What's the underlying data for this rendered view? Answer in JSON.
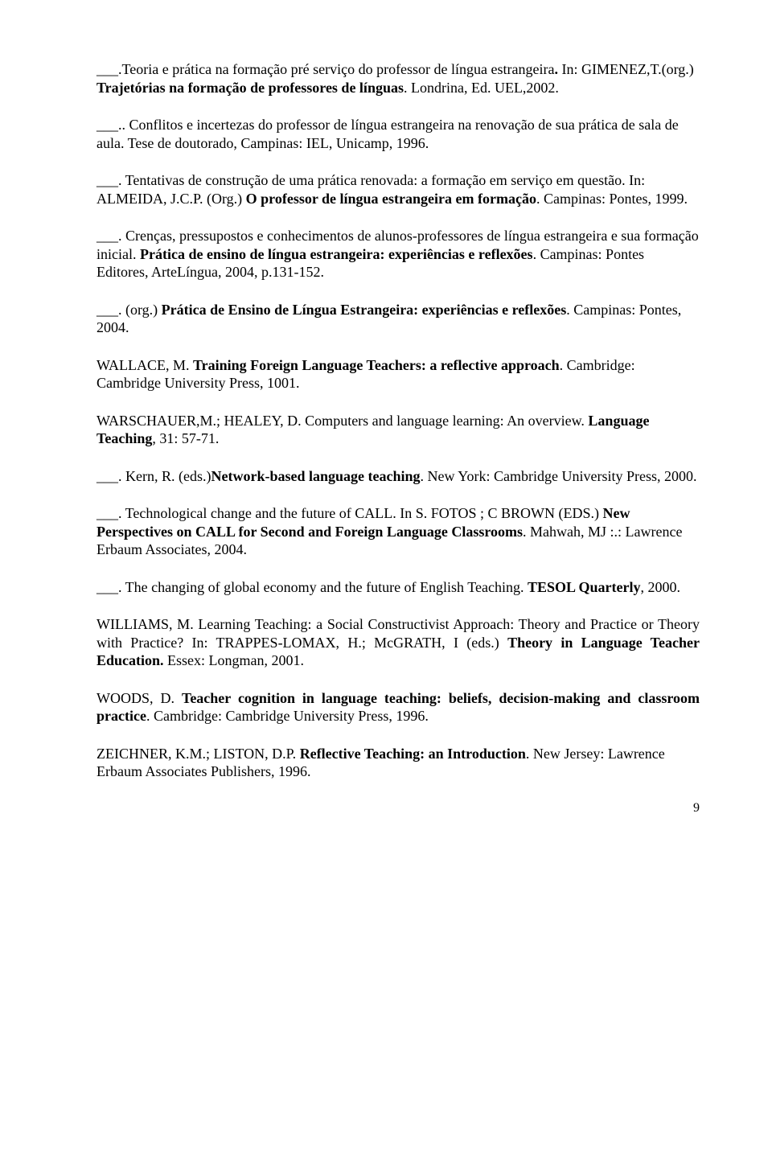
{
  "entries": [
    {
      "segments": [
        {
          "text": "___.Teoria e prática na formação pré serviço do professor de língua estrangeira",
          "bold": false
        },
        {
          "text": ". ",
          "bold": true
        },
        {
          "text": "In: GIMENEZ,T.(org.) ",
          "bold": false
        },
        {
          "text": "Trajetórias na formação de professores de línguas",
          "bold": true
        },
        {
          "text": ". Londrina, Ed. UEL,2002.",
          "bold": false
        }
      ],
      "justified": false
    },
    {
      "segments": [
        {
          "text": "___.. Conflitos e incertezas do professor de língua estrangeira na renovação de sua prática de sala de aula. Tese de doutorado, Campinas: IEL, Unicamp, 1996.",
          "bold": false
        }
      ],
      "justified": false
    },
    {
      "segments": [
        {
          "text": "___. Tentativas de construção de uma prática renovada: a formação em serviço em questão. In: ALMEIDA, J.C.P. (Org.) ",
          "bold": false
        },
        {
          "text": "O professor de língua estrangeira em formação",
          "bold": true
        },
        {
          "text": ". Campinas: Pontes, 1999.",
          "bold": false
        }
      ],
      "justified": false
    },
    {
      "segments": [
        {
          "text": "___. Crenças, pressupostos e conhecimentos de alunos-professores de língua estrangeira e sua formação inicial. ",
          "bold": false
        },
        {
          "text": "Prática de ensino de língua estrangeira: experiências e reflexões",
          "bold": true
        },
        {
          "text": ". Campinas: Pontes Editores, ArteLíngua, 2004, p.131-152.",
          "bold": false
        }
      ],
      "justified": false
    },
    {
      "segments": [
        {
          "text": "___. (org.) ",
          "bold": false
        },
        {
          "text": "Prática de Ensino de Língua Estrangeira: experiências e reflexões",
          "bold": true
        },
        {
          "text": ". Campinas: Pontes, 2004.",
          "bold": false
        }
      ],
      "justified": false
    },
    {
      "segments": [
        {
          "text": "WALLACE, M.  ",
          "bold": false
        },
        {
          "text": "Training Foreign Language Teachers: a reflective approach",
          "bold": true
        },
        {
          "text": ". Cambridge: Cambridge University Press, 1001.",
          "bold": false
        }
      ],
      "justified": false
    },
    {
      "segments": [
        {
          "text": "WARSCHAUER,M.; HEALEY, D. Computers and language learning: An overview. ",
          "bold": false
        },
        {
          "text": "Language Teaching",
          "bold": true
        },
        {
          "text": ", 31:  57-71.",
          "bold": false
        }
      ],
      "justified": false
    },
    {
      "segments": [
        {
          "text": "___. Kern, R. (eds.)",
          "bold": false
        },
        {
          "text": "Network-based language teaching",
          "bold": true
        },
        {
          "text": ". New York: Cambridge University Press, 2000.",
          "bold": false
        }
      ],
      "justified": false
    },
    {
      "segments": [
        {
          "text": "___. Technological change and the future of CALL. In  S. FOTOS ; C BROWN (EDS.) ",
          "bold": false
        },
        {
          "text": "New Perspectives on CALL for Second  and Foreign Language Classrooms",
          "bold": true
        },
        {
          "text": ". Mahwah, MJ :.: Lawrence Erbaum Associates, 2004.",
          "bold": false
        }
      ],
      "justified": false
    },
    {
      "segments": [
        {
          "text": "___. The changing of global economy and the future of  English Teaching. ",
          "bold": false
        },
        {
          "text": "TESOL Quarterly",
          "bold": true
        },
        {
          "text": ", 2000.",
          "bold": false
        }
      ],
      "justified": false
    },
    {
      "segments": [
        {
          "text": "WILLIAMS, M. Learning Teaching: a Social Constructivist Approach: Theory and Practice or Theory with Practice? In: TRAPPES-LOMAX, H.; McGRATH, I (eds.) ",
          "bold": false
        },
        {
          "text": "Theory in Language Teacher Education. ",
          "bold": true
        },
        {
          "text": "Essex: Longman, 2001.",
          "bold": false
        }
      ],
      "justified": true
    },
    {
      "segments": [
        {
          "text": "WOODS, D. ",
          "bold": false
        },
        {
          "text": "Teacher cognition in language teaching: beliefs, decision-making and classroom practice",
          "bold": true
        },
        {
          "text": ". Cambridge: Cambridge University Press, 1996.",
          "bold": false
        }
      ],
      "justified": true
    },
    {
      "segments": [
        {
          "text": "ZEICHNER, K.M.; LISTON, D.P. ",
          "bold": false
        },
        {
          "text": "Reflective Teaching: an Introduction",
          "bold": true
        },
        {
          "text": ". New Jersey: Lawrence Erbaum Associates Publishers, 1996.",
          "bold": false
        }
      ],
      "justified": false
    }
  ],
  "page_number": "9"
}
